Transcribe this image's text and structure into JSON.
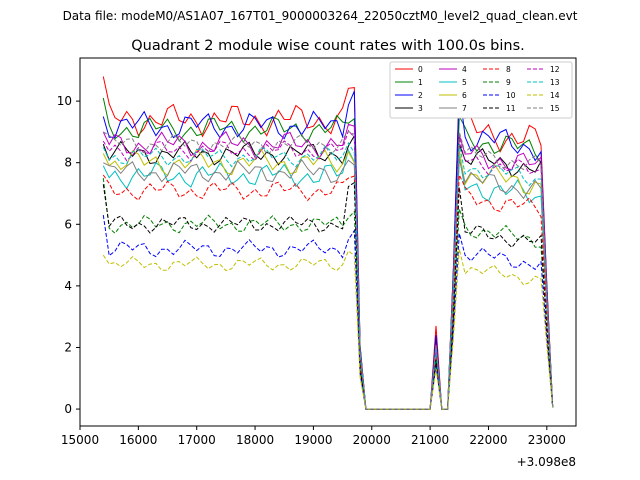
{
  "chart_data": {
    "type": "line",
    "suptitle": "Data file: modeM0/AS1A07_167T01_9000003264_22050cztM0_level2_quad_clean.evt",
    "title": "Quadrant 2 module wise count rates with 100.0s bins.",
    "xlabel": "",
    "ylabel": "",
    "x_offset_label": "+3.098e8",
    "xlim": [
      15000,
      23500
    ],
    "ylim": [
      -0.55,
      11.4
    ],
    "x_ticks": [
      15000,
      16000,
      17000,
      18000,
      19000,
      20000,
      21000,
      22000,
      23000
    ],
    "x_tick_labels": [
      "15000",
      "16000",
      "17000",
      "18000",
      "19000",
      "20000",
      "21000",
      "22000",
      "23000"
    ],
    "y_ticks": [
      0,
      2,
      4,
      6,
      8,
      10
    ],
    "y_tick_labels": [
      "0",
      "2",
      "4",
      "6",
      "8",
      "10"
    ],
    "legend_location": "top-right",
    "x_start": 15400,
    "x_step": 100,
    "series": [
      {
        "name": "0",
        "color": "#ff0000",
        "style": "solid",
        "base": 9.4,
        "start": 10.8,
        "peak": 10.5,
        "spike": 2.7,
        "after": 9.1,
        "amp": 0.55,
        "ph": 0.3
      },
      {
        "name": "1",
        "color": "#008000",
        "style": "solid",
        "base": 9.1,
        "start": 10.1,
        "peak": 9.5,
        "spike": 2.2,
        "after": 8.8,
        "amp": 0.45,
        "ph": 1.1
      },
      {
        "name": "2",
        "color": "#0000ff",
        "style": "solid",
        "base": 9.2,
        "start": 9.5,
        "peak": 10.4,
        "spike": 2.4,
        "after": 8.9,
        "amp": 0.5,
        "ph": 2.0
      },
      {
        "name": "3",
        "color": "#000000",
        "style": "solid",
        "base": 8.3,
        "start": 8.6,
        "peak": 8.6,
        "spike": 2.0,
        "after": 8.2,
        "amp": 0.4,
        "ph": 2.7
      },
      {
        "name": "4",
        "color": "#bf00bf",
        "style": "solid",
        "base": 8.6,
        "start": 9.0,
        "peak": 8.9,
        "spike": 2.1,
        "after": 8.3,
        "amp": 0.45,
        "ph": 3.5
      },
      {
        "name": "5",
        "color": "#00bfbf",
        "style": "solid",
        "base": 7.6,
        "start": 7.9,
        "peak": 8.2,
        "spike": 1.9,
        "after": 7.3,
        "amp": 0.45,
        "ph": 4.2
      },
      {
        "name": "6",
        "color": "#bfbf00",
        "style": "solid",
        "base": 8.0,
        "start": 8.3,
        "peak": 8.4,
        "spike": 2.0,
        "after": 7.7,
        "amp": 0.45,
        "ph": 5.0
      },
      {
        "name": "7",
        "color": "#808080",
        "style": "solid",
        "base": 7.7,
        "start": 8.0,
        "peak": 8.1,
        "spike": 1.9,
        "after": 7.5,
        "amp": 0.4,
        "ph": 5.7
      },
      {
        "name": "8",
        "color": "#ff0000",
        "style": "dashed",
        "base": 7.1,
        "start": 7.6,
        "peak": 7.6,
        "spike": 1.8,
        "after": 6.9,
        "amp": 0.35,
        "ph": 0.8
      },
      {
        "name": "9",
        "color": "#008000",
        "style": "dashed",
        "base": 6.0,
        "start": 7.5,
        "peak": 6.5,
        "spike": 1.6,
        "after": 5.9,
        "amp": 0.3,
        "ph": 1.6
      },
      {
        "name": "10",
        "color": "#0000ff",
        "style": "dashed",
        "base": 5.2,
        "start": 6.3,
        "peak": 5.7,
        "spike": 1.4,
        "after": 5.1,
        "amp": 0.3,
        "ph": 2.4
      },
      {
        "name": "11",
        "color": "#000000",
        "style": "dashed",
        "base": 6.0,
        "start": 7.3,
        "peak": 7.2,
        "spike": 1.6,
        "after": 5.8,
        "amp": 0.3,
        "ph": 3.1
      },
      {
        "name": "12",
        "color": "#bf00bf",
        "style": "dashed",
        "base": 8.4,
        "start": 8.7,
        "peak": 8.8,
        "spike": 2.0,
        "after": 8.1,
        "amp": 0.35,
        "ph": 3.9
      },
      {
        "name": "13",
        "color": "#00bfbf",
        "style": "dashed",
        "base": 8.2,
        "start": 8.5,
        "peak": 8.6,
        "spike": 2.0,
        "after": 7.9,
        "amp": 0.35,
        "ph": 4.6
      },
      {
        "name": "14",
        "color": "#bfbf00",
        "style": "dashed",
        "base": 4.7,
        "start": 5.0,
        "peak": 5.2,
        "spike": 1.3,
        "after": 4.6,
        "amp": 0.25,
        "ph": 5.3
      },
      {
        "name": "15",
        "color": "#808080",
        "style": "dashed",
        "base": 8.6,
        "start": 9.0,
        "peak": 9.0,
        "spike": 2.1,
        "after": 8.3,
        "amp": 0.35,
        "ph": 6.0
      }
    ]
  }
}
